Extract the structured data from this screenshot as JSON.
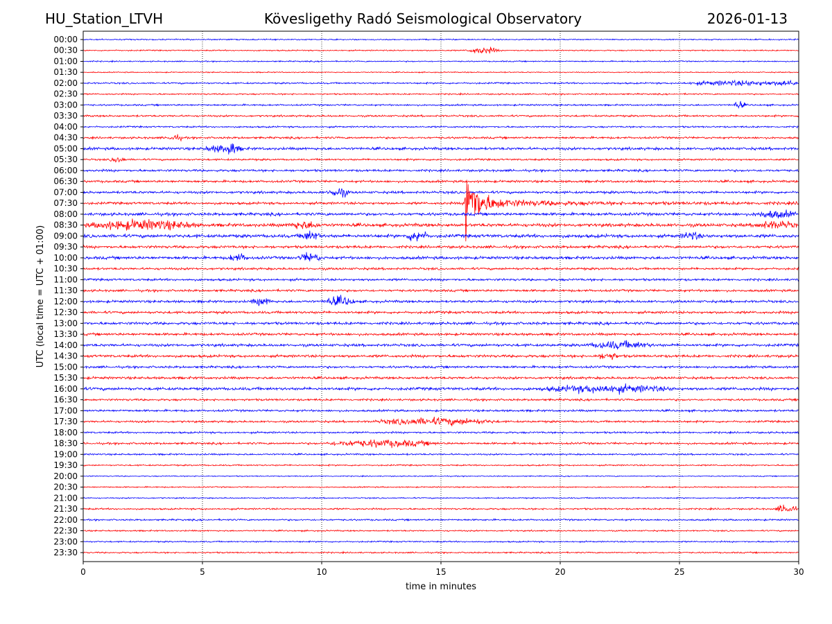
{
  "header": {
    "station": "HU_Station_LTVH",
    "title": "Kövesligethy Radó Seismological Observatory",
    "date": "2026-01-13"
  },
  "chart_data": {
    "type": "line",
    "title": "Kövesligethy Radó Seismological Observatory",
    "xlabel": "time in minutes",
    "ylabel": "UTC (local time = UTC + 01:00)",
    "xlim": [
      0,
      30
    ],
    "xticks": [
      "0",
      "5",
      "10",
      "15",
      "20",
      "25",
      "30"
    ],
    "grid": "vertical dotted at 5-minute intervals",
    "colors": [
      "#0000ff",
      "#ff0000"
    ],
    "rows": [
      "00:00",
      "00:30",
      "01:00",
      "01:30",
      "02:00",
      "02:30",
      "03:00",
      "03:30",
      "04:00",
      "04:30",
      "05:00",
      "05:30",
      "06:00",
      "06:30",
      "07:00",
      "07:30",
      "08:00",
      "08:30",
      "09:00",
      "09:30",
      "10:00",
      "10:30",
      "11:00",
      "11:30",
      "12:00",
      "12:30",
      "13:00",
      "13:30",
      "14:00",
      "14:30",
      "15:00",
      "15:30",
      "16:00",
      "16:30",
      "17:00",
      "17:30",
      "18:00",
      "18:30",
      "19:00",
      "19:30",
      "20:00",
      "20:30",
      "21:00",
      "21:30",
      "22:00",
      "22:30",
      "23:00",
      "23:30"
    ],
    "noise_level": [
      0.6,
      0.6,
      0.6,
      0.5,
      0.8,
      0.7,
      0.8,
      0.9,
      0.8,
      1.0,
      1.3,
      0.9,
      1.1,
      1.1,
      1.2,
      1.2,
      1.4,
      1.6,
      1.6,
      1.3,
      1.4,
      1.1,
      1.1,
      1.1,
      1.2,
      1.2,
      1.3,
      1.2,
      1.3,
      1.3,
      1.1,
      1.2,
      1.4,
      1.0,
      1.0,
      1.0,
      0.9,
      1.0,
      0.8,
      0.7,
      0.5,
      0.6,
      0.6,
      0.8,
      0.8,
      0.7,
      0.7,
      0.7
    ],
    "events": [
      {
        "row": "00:30",
        "start": 16.0,
        "end": 17.5,
        "amp": 3
      },
      {
        "row": "02:00",
        "start": 25,
        "end": 30,
        "amp": 2
      },
      {
        "row": "02:00",
        "start": 29,
        "end": 30,
        "amp": 3
      },
      {
        "row": "03:00",
        "start": 27.2,
        "end": 27.8,
        "amp": 3
      },
      {
        "row": "04:30",
        "start": 3.5,
        "end": 4.2,
        "amp": 2.5
      },
      {
        "row": "05:00",
        "start": 5,
        "end": 6.8,
        "amp": 3
      },
      {
        "row": "05:00",
        "start": 6.0,
        "end": 6.4,
        "amp": 7
      },
      {
        "row": "05:30",
        "start": 1.1,
        "end": 1.8,
        "amp": 2.5
      },
      {
        "row": "07:00",
        "start": 10.2,
        "end": 11.2,
        "amp": 4
      },
      {
        "row": "07:30",
        "start": 16.0,
        "end": 30,
        "amp": 50,
        "decay": true
      },
      {
        "row": "08:00",
        "start": 28,
        "end": 30,
        "amp": 3
      },
      {
        "row": "08:30",
        "start": 0,
        "end": 5,
        "amp": 4
      },
      {
        "row": "08:30",
        "start": 8.5,
        "end": 10,
        "amp": 3
      },
      {
        "row": "08:30",
        "start": 28,
        "end": 30,
        "amp": 3
      },
      {
        "row": "09:00",
        "start": 9,
        "end": 10,
        "amp": 4
      },
      {
        "row": "09:00",
        "start": 13.5,
        "end": 14.5,
        "amp": 5
      },
      {
        "row": "09:00",
        "start": 25,
        "end": 26,
        "amp": 3
      },
      {
        "row": "10:00",
        "start": 6,
        "end": 7,
        "amp": 3
      },
      {
        "row": "10:00",
        "start": 9,
        "end": 10,
        "amp": 4
      },
      {
        "row": "12:00",
        "start": 7,
        "end": 8,
        "amp": 3
      },
      {
        "row": "12:00",
        "start": 10,
        "end": 11.5,
        "amp": 4
      },
      {
        "row": "14:00",
        "start": 21,
        "end": 24,
        "amp": 3
      },
      {
        "row": "14:30",
        "start": 21.5,
        "end": 22.5,
        "amp": 3
      },
      {
        "row": "16:00",
        "start": 19,
        "end": 25,
        "amp": 3
      },
      {
        "row": "17:30",
        "start": 12,
        "end": 17.5,
        "amp": 3
      },
      {
        "row": "18:30",
        "start": 10,
        "end": 15,
        "amp": 3
      },
      {
        "row": "21:30",
        "start": 29,
        "end": 30,
        "amp": 4
      }
    ]
  }
}
